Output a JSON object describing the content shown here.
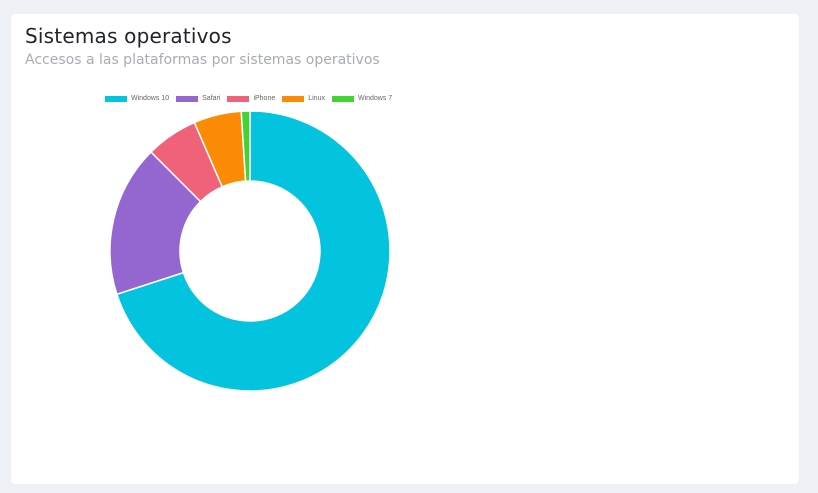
{
  "card": {
    "title": "Sistemas operativos",
    "subtitle": "Accesos a las plataformas por sistemas operativos"
  },
  "chart_data": {
    "type": "pie",
    "variant": "doughnut",
    "legend_position": "top",
    "labels": [
      "Windows 10",
      "Safari",
      "iPhone",
      "Linux",
      "Windows 7"
    ],
    "values": [
      70,
      17.5,
      6,
      5.5,
      1
    ],
    "colors": [
      "#04c3df",
      "#9466cf",
      "#f0617a",
      "#fb8b05",
      "#42d532"
    ]
  }
}
